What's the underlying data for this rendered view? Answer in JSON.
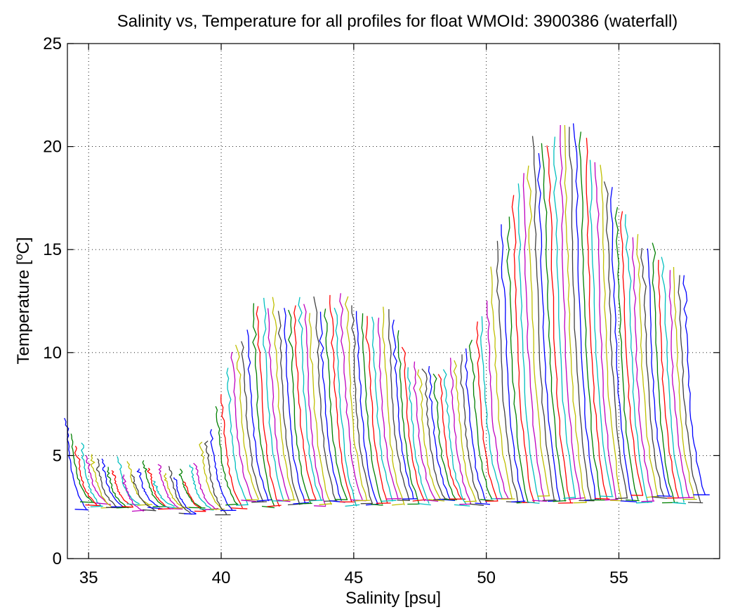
{
  "chart_data": {
    "type": "line",
    "title": "Salinity vs, Temperature for all profiles for float WMOId: 3900386 (waterfall)",
    "xlabel": "Salinity [psu]",
    "ylabel_prefix": "Temperature [",
    "ylabel_unit_sup": "o",
    "ylabel_unit": "C",
    "ylabel_suffix": "]",
    "xlim": [
      34.2,
      58.8
    ],
    "ylim": [
      0,
      25
    ],
    "xticks": [
      35,
      40,
      45,
      50,
      55
    ],
    "yticks": [
      0,
      5,
      10,
      15,
      20,
      25
    ],
    "grid": true,
    "grid_style": "dotted",
    "legend": "none",
    "series_colors": [
      "#0000ff",
      "#008000",
      "#ff0000",
      "#00bfbf",
      "#bf00bf",
      "#bfbf00",
      "#404040"
    ],
    "profiles": {
      "count": 120,
      "x_start": 34.4,
      "x_step": 0.196,
      "bottom_temp_segments": [
        [
          34.3,
          2.6
        ],
        [
          36,
          2.5
        ],
        [
          38,
          2.4
        ],
        [
          39.9,
          2.3
        ],
        [
          40.5,
          2.7
        ],
        [
          45,
          2.7
        ],
        [
          50,
          2.8
        ],
        [
          55,
          2.9
        ],
        [
          57.8,
          2.9
        ]
      ],
      "top_temp_segments": [
        [
          34.3,
          6.6
        ],
        [
          35,
          5.2
        ],
        [
          37,
          4.3
        ],
        [
          39,
          4.2
        ],
        [
          40,
          6.5
        ],
        [
          40.7,
          10.0
        ],
        [
          41.5,
          12.3
        ],
        [
          42,
          12.5
        ],
        [
          44,
          12.4
        ],
        [
          45,
          12.6
        ],
        [
          46.5,
          11.8
        ],
        [
          47.3,
          9.8
        ],
        [
          48,
          8.8
        ],
        [
          49,
          9.3
        ],
        [
          49.5,
          10.5
        ],
        [
          50.2,
          12.5
        ],
        [
          50.7,
          15.5
        ],
        [
          51.3,
          17.5
        ],
        [
          52,
          20.0
        ],
        [
          53.5,
          21.0
        ],
        [
          54.3,
          19.5
        ],
        [
          55,
          17.5
        ],
        [
          56,
          15.5
        ],
        [
          57,
          14.5
        ],
        [
          58,
          13.8
        ]
      ]
    }
  }
}
